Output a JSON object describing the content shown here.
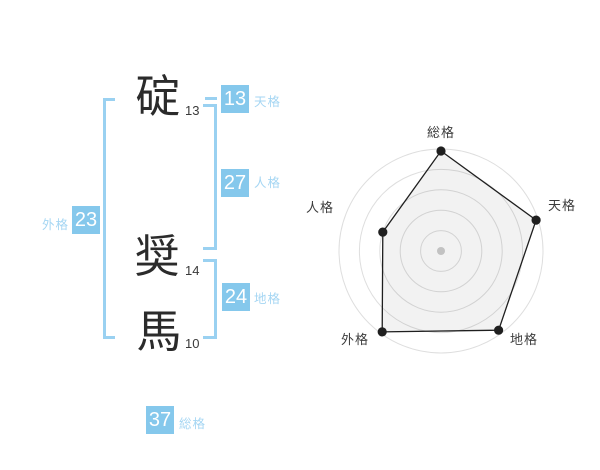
{
  "colors": {
    "background": "#FFFFFF",
    "accent": "#85C8EC",
    "accent_soft": "#9AD1F1",
    "label_blue": "#A5D6F3",
    "badge_text": "#FFFFFF",
    "ink": "#2B2B2B",
    "stroke_count": "#3A3A3A",
    "radar_ring": "#DEDEDE",
    "radar_line": "#1F1F1F",
    "radar_fill": "rgba(0,0,0,0.05)",
    "radar_center_dot": "#C2C2C2",
    "radar_label": "#3C3C3C"
  },
  "name_diagram": {
    "characters": [
      {
        "char": "碇",
        "strokes": "13"
      },
      {
        "char": "奨",
        "strokes": "14"
      },
      {
        "char": "馬",
        "strokes": "10"
      }
    ],
    "kaku": {
      "tenkaku": {
        "value": "13",
        "label": "天格"
      },
      "jinkaku": {
        "value": "27",
        "label": "人格"
      },
      "chikaku": {
        "value": "24",
        "label": "地格"
      },
      "gaikaku": {
        "value": "23",
        "label": "外格"
      },
      "soukaku": {
        "value": "37",
        "label": "総格"
      }
    }
  },
  "chart_data": {
    "type": "radar",
    "title": "",
    "axes": [
      "総格",
      "天格",
      "地格",
      "外格",
      "人格"
    ],
    "values_percent": [
      98,
      98,
      96,
      98,
      60
    ],
    "max": 100,
    "rings": 5,
    "angles_deg": [
      90,
      18,
      -54,
      -126,
      162
    ],
    "outer_radius_px": 102,
    "grid": "circular",
    "legend": "none"
  }
}
